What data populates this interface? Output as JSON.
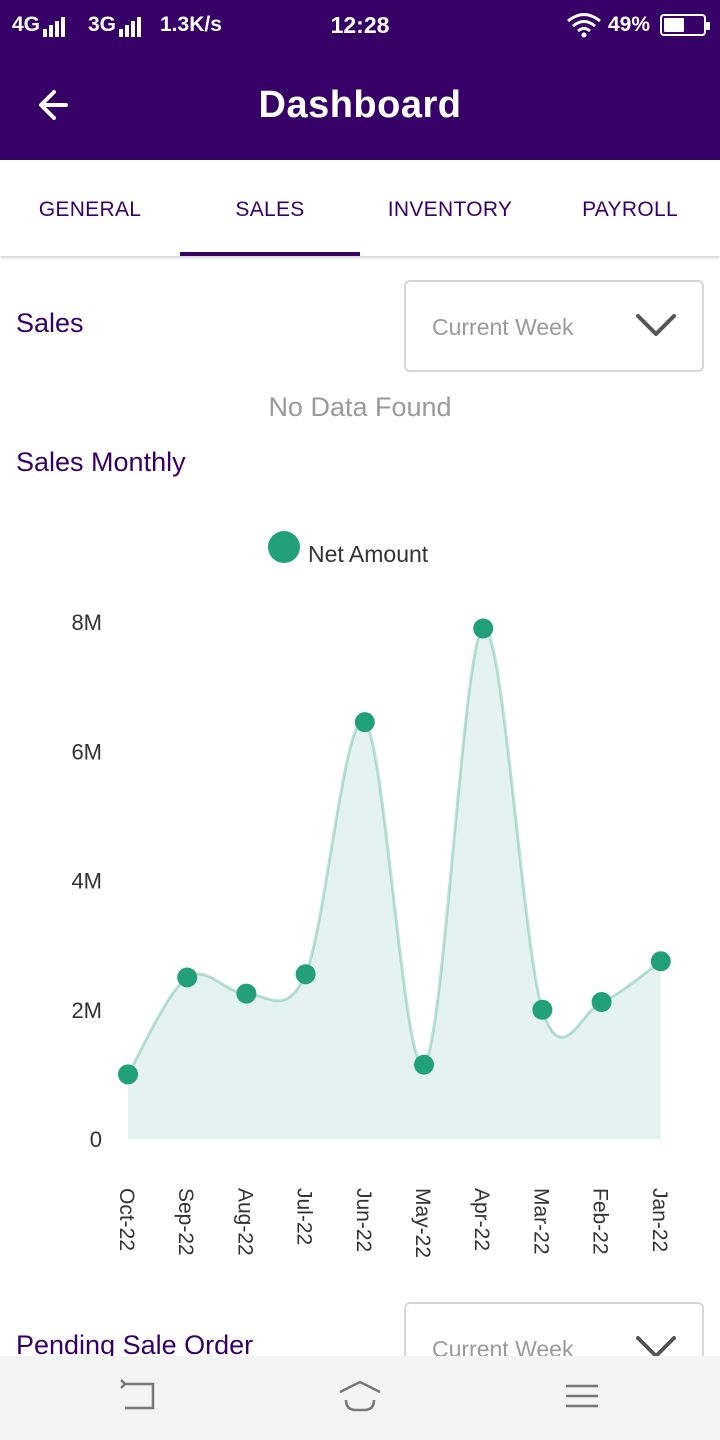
{
  "status_bar": {
    "network1": "4G",
    "network2": "3G",
    "speed": "1.3K/s",
    "time": "12:28",
    "battery": "49%",
    "battery_level": 0.49
  },
  "header": {
    "title": "Dashboard",
    "back_icon": "arrow-left-icon",
    "background": "#360066"
  },
  "tabs": [
    {
      "label": "GENERAL",
      "active": false
    },
    {
      "label": "SALES",
      "active": true
    },
    {
      "label": "INVENTORY",
      "active": false
    },
    {
      "label": "PAYROLL",
      "active": false
    }
  ],
  "sales": {
    "title": "Sales",
    "period_value": "Current Week",
    "empty_text": "No Data Found"
  },
  "sales_monthly": {
    "title": "Sales Monthly",
    "legend": "Net Amount"
  },
  "pending": {
    "title": "Pending Sale Order",
    "period_value": "Current Week"
  },
  "chart_data": {
    "type": "area",
    "title": "",
    "xlabel": "",
    "ylabel": "",
    "categories": [
      "Oct-22",
      "Sep-22",
      "Aug-22",
      "Jul-22",
      "Jun-22",
      "May-22",
      "Apr-22",
      "Mar-22",
      "Feb-22",
      "Jan-22"
    ],
    "series": [
      {
        "name": "Net Amount",
        "values": [
          1.0,
          2.5,
          2.25,
          2.55,
          6.45,
          1.15,
          7.9,
          2.0,
          2.12,
          2.75
        ],
        "unit": "M",
        "color": "#22a079"
      }
    ],
    "yticks": [
      "0",
      "2M",
      "4M",
      "6M",
      "8M"
    ],
    "ylim": [
      0,
      8
    ],
    "grid": false,
    "legend_position": "top-center"
  },
  "nav_bar": {
    "icons": [
      "back-nav-icon",
      "home-nav-icon",
      "menu-nav-icon"
    ]
  }
}
